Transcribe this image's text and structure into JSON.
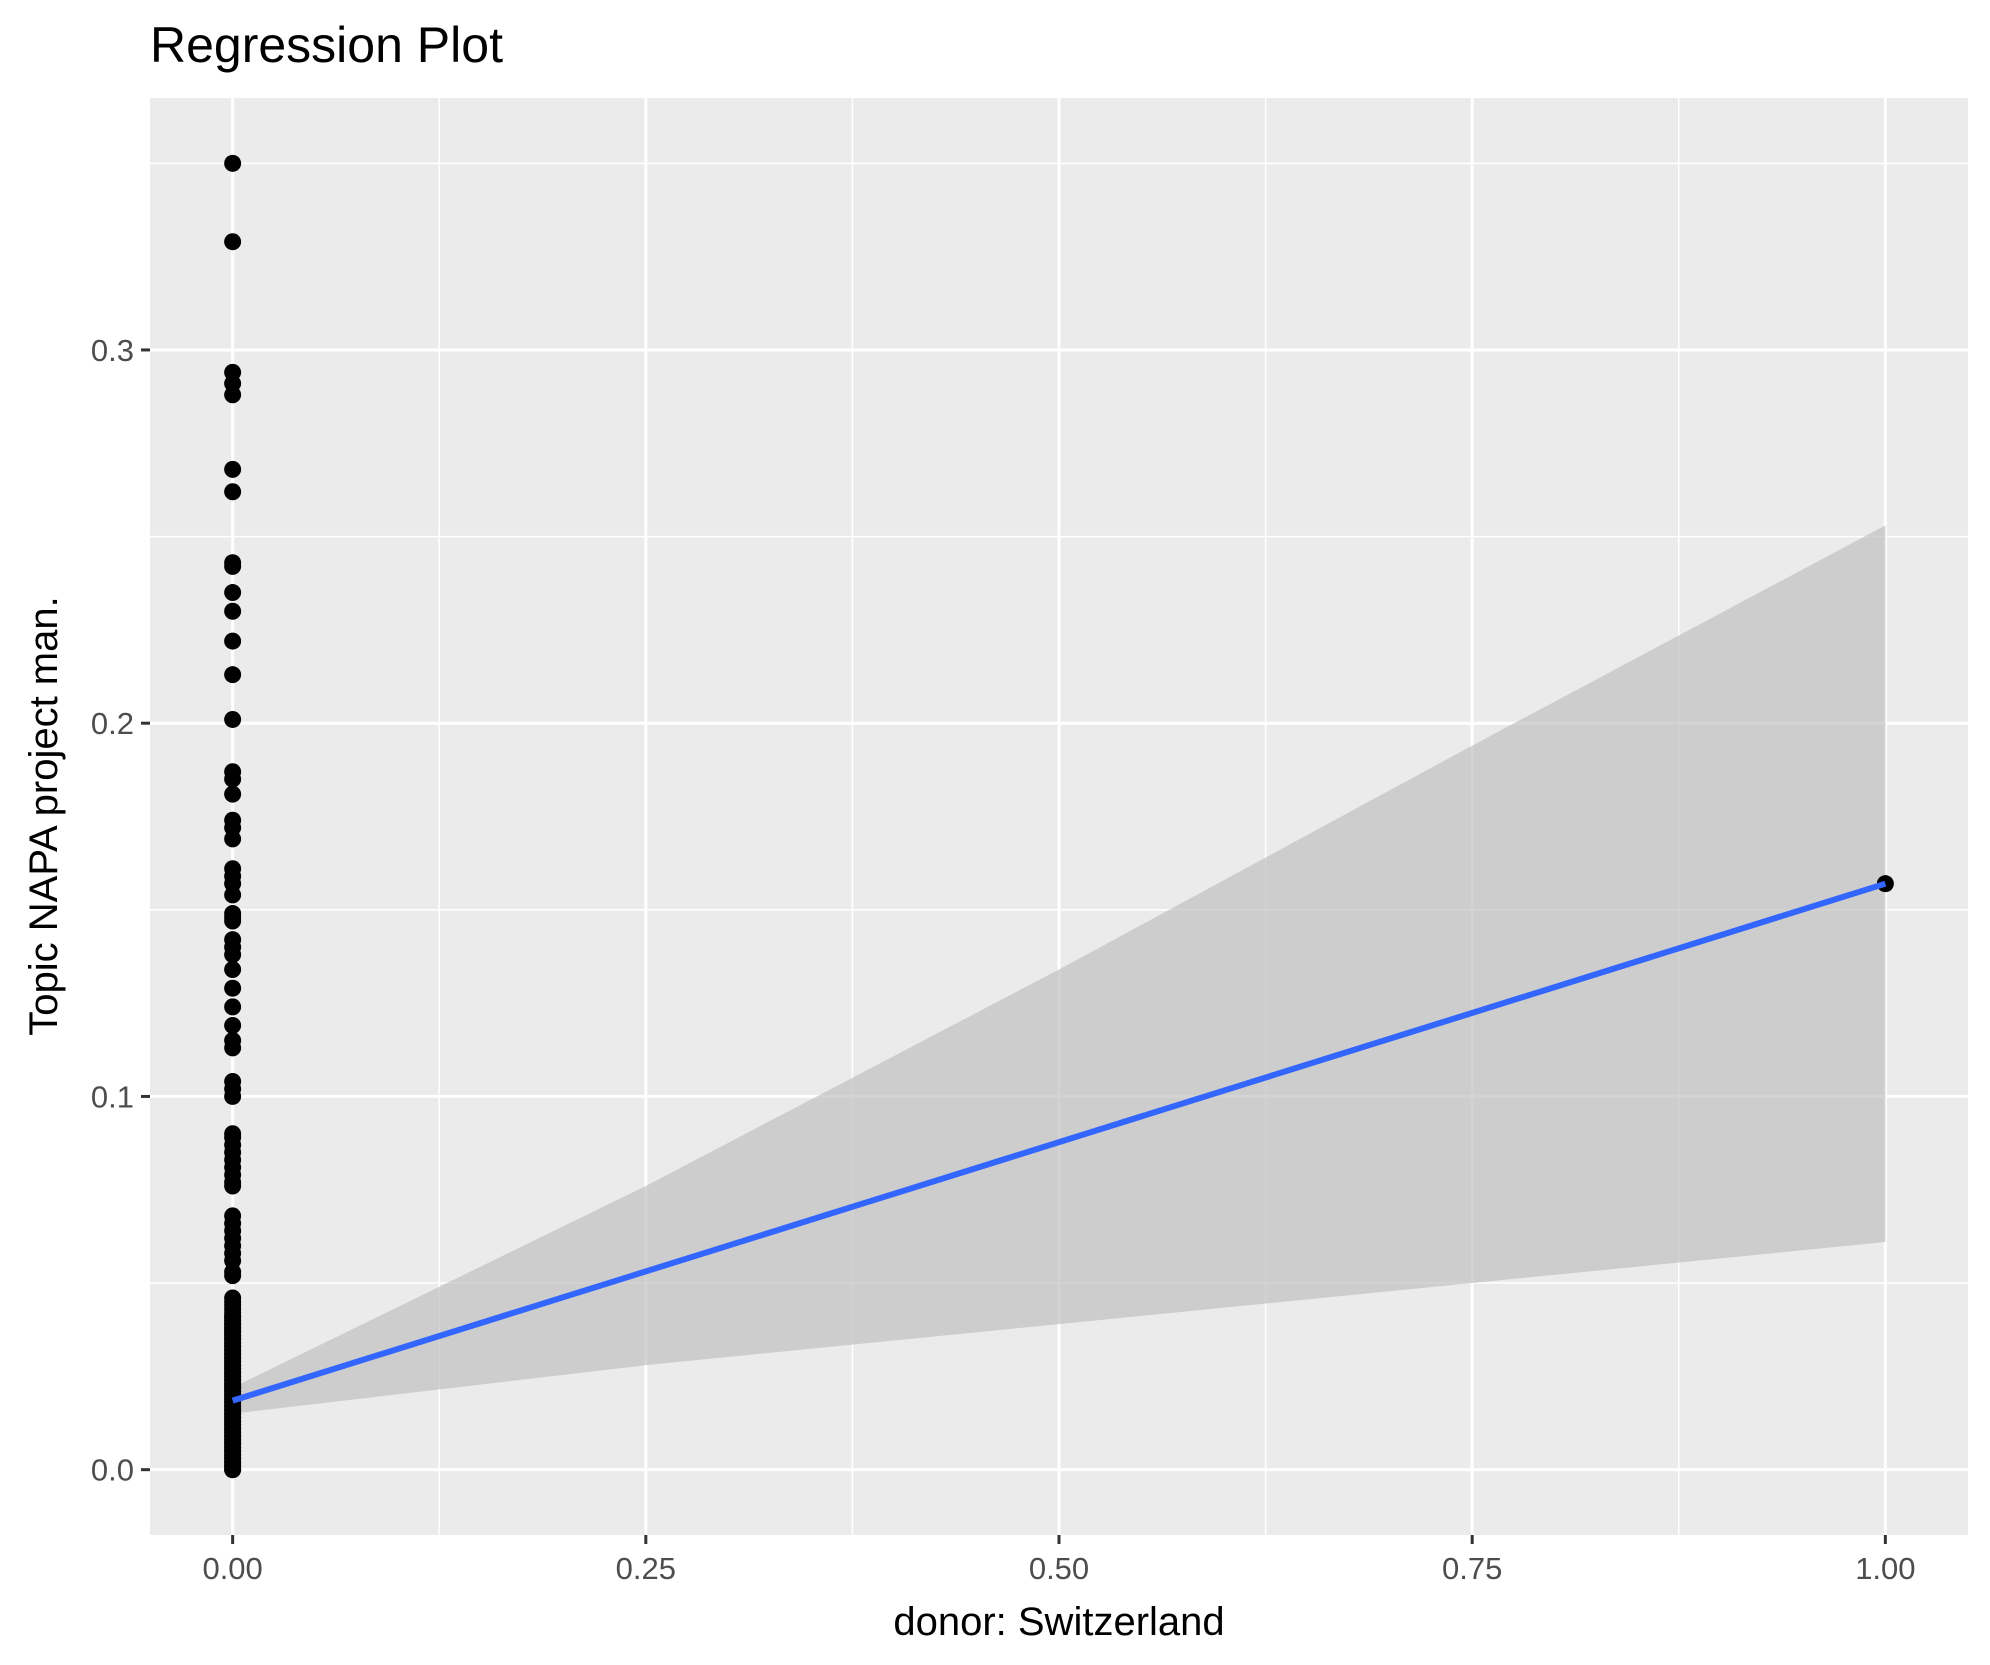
{
  "chart_data": {
    "type": "scatter",
    "title": "Regression Plot",
    "xlabel": "donor: Switzerland",
    "ylabel": "Topic NAPA project man.",
    "xlim": [
      -0.05,
      1.05
    ],
    "ylim": [
      -0.0175,
      0.3675
    ],
    "x_ticks": [
      0.0,
      0.25,
      0.5,
      0.75,
      1.0
    ],
    "x_tick_labels": [
      "0.00",
      "0.25",
      "0.50",
      "0.75",
      "1.00"
    ],
    "y_ticks": [
      0.0,
      0.1,
      0.2,
      0.3
    ],
    "y_tick_labels": [
      "0.0",
      "0.1",
      "0.2",
      "0.3"
    ],
    "x_minor_ticks": [
      0.125,
      0.375,
      0.625,
      0.875
    ],
    "y_minor_ticks": [
      0.05,
      0.15,
      0.25,
      0.35
    ],
    "grid": true,
    "legend": "none",
    "colors": {
      "panel": "#ebebeb",
      "grid": "#ffffff",
      "points": "#000000",
      "fit_line": "#3366ff",
      "ribbon": "#c0c0c0"
    },
    "points": {
      "x": [
        0,
        0,
        0,
        0,
        0,
        0,
        0,
        0,
        0,
        0,
        0,
        0,
        0,
        0,
        0,
        0,
        0,
        0,
        0,
        0,
        0,
        0,
        0,
        0,
        0,
        0,
        0,
        0,
        0,
        0,
        0,
        0,
        0,
        0,
        0,
        0,
        0,
        0,
        0,
        0,
        0,
        0,
        0,
        0,
        0,
        0,
        0,
        0,
        0,
        0,
        0,
        0,
        0,
        0,
        0,
        0,
        0,
        0,
        0,
        0,
        0,
        0,
        0,
        0,
        0,
        0,
        0,
        0,
        0,
        0,
        0,
        0,
        0,
        0,
        0,
        0,
        0,
        0,
        0,
        0,
        0,
        0,
        0,
        0,
        0,
        0,
        0,
        0,
        0,
        0,
        0,
        0,
        0,
        0,
        0,
        0,
        0,
        0,
        0,
        0,
        0,
        0,
        0,
        0,
        0,
        0,
        0,
        0,
        0,
        0,
        0,
        0,
        0,
        0,
        0,
        0,
        0,
        0,
        0,
        0,
        0,
        0,
        0,
        0,
        0,
        0,
        0,
        0,
        0,
        0,
        0,
        0,
        0,
        0,
        0,
        0,
        0,
        0,
        0,
        0,
        0,
        0,
        0,
        0,
        0,
        0,
        1
      ],
      "y": [
        0.35,
        0.329,
        0.294,
        0.291,
        0.288,
        0.268,
        0.262,
        0.243,
        0.242,
        0.235,
        0.23,
        0.222,
        0.213,
        0.201,
        0.187,
        0.185,
        0.181,
        0.174,
        0.172,
        0.169,
        0.161,
        0.159,
        0.157,
        0.154,
        0.149,
        0.148,
        0.147,
        0.142,
        0.14,
        0.138,
        0.134,
        0.129,
        0.124,
        0.119,
        0.115,
        0.113,
        0.104,
        0.102,
        0.1,
        0.09,
        0.089,
        0.087,
        0.085,
        0.083,
        0.081,
        0.079,
        0.077,
        0.076,
        0.068,
        0.066,
        0.064,
        0.062,
        0.06,
        0.058,
        0.056,
        0.053,
        0.052,
        0.046,
        0.045,
        0.044,
        0.043,
        0.042,
        0.041,
        0.04,
        0.039,
        0.038,
        0.037,
        0.036,
        0.035,
        0.034,
        0.033,
        0.032,
        0.031,
        0.03,
        0.029,
        0.028,
        0.027,
        0.026,
        0.025,
        0.024,
        0.023,
        0.022,
        0.021,
        0.02,
        0.019,
        0.018,
        0.017,
        0.016,
        0.015,
        0.014,
        0.013,
        0.012,
        0.011,
        0.01,
        0.009,
        0.008,
        0.007,
        0.006,
        0.005,
        0.004,
        0.003,
        0.002,
        0.001,
        0.0,
        0.0,
        0.002,
        0.004,
        0.006,
        0.008,
        0.01,
        0.012,
        0.014,
        0.016,
        0.018,
        0.02,
        0.022,
        0.024,
        0.026,
        0.028,
        0.03,
        0.032,
        0.034,
        0.036,
        0.038,
        0.04,
        0.001,
        0.003,
        0.005,
        0.007,
        0.009,
        0.011,
        0.013,
        0.015,
        0.017,
        0.019,
        0.021,
        0.023,
        0.025,
        0.027,
        0.029,
        0.031,
        0.033,
        0.035,
        0.037,
        0.039,
        0.041,
        0.157
      ]
    },
    "fit": {
      "x": [
        0,
        1
      ],
      "y": [
        0.0185,
        0.157
      ]
    },
    "ribbon": {
      "x": [
        0,
        0.25,
        0.5,
        0.75,
        1.0
      ],
      "lower": [
        0.015,
        0.028,
        0.039,
        0.05,
        0.061
      ],
      "upper": [
        0.022,
        0.076,
        0.134,
        0.194,
        0.253
      ]
    }
  }
}
